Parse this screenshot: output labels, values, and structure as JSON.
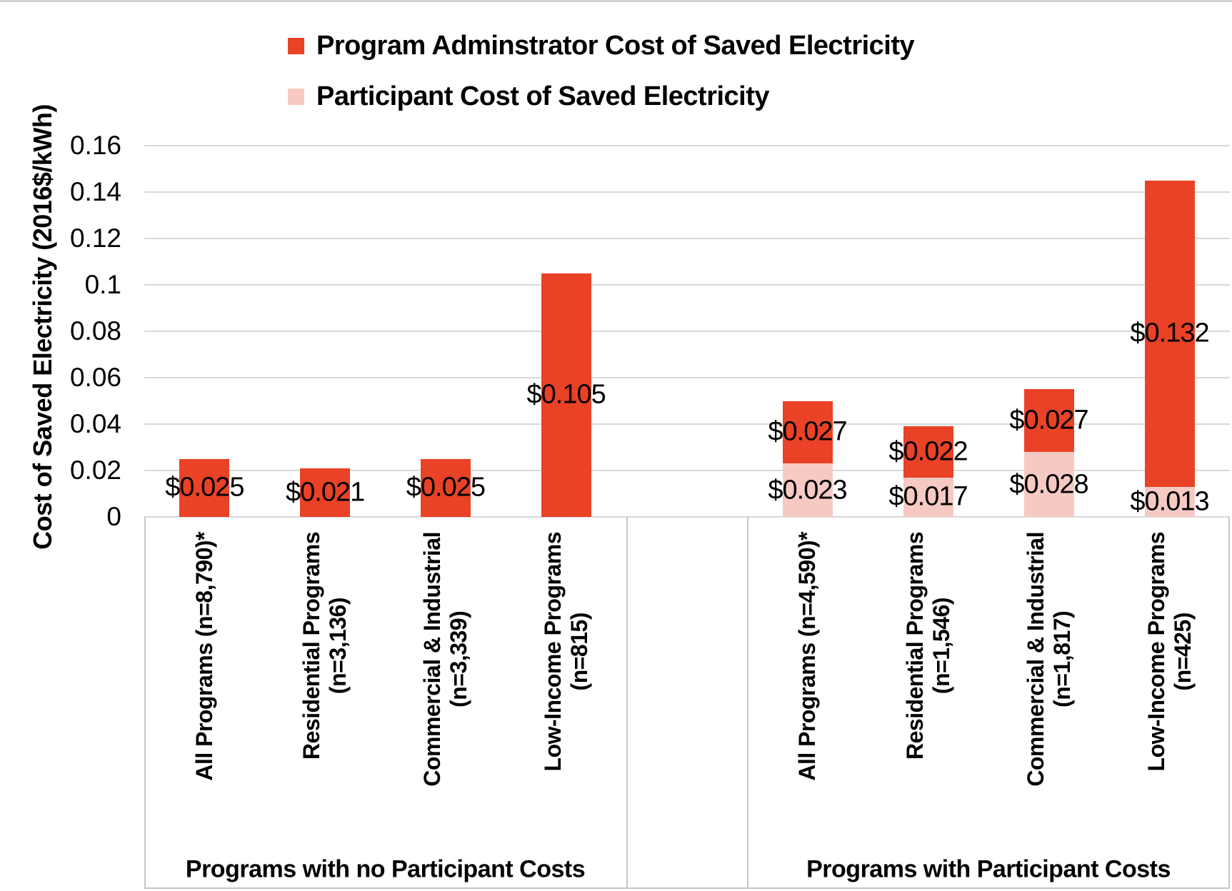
{
  "page": {
    "background": "#ffffff",
    "top_border_color": "#d4d2d2"
  },
  "legend": {
    "items": [
      {
        "name": "program-administrator-cost",
        "label": "Program Adminstrator Cost of Saved Electricity",
        "color": "#e94226"
      },
      {
        "name": "participant-cost",
        "label": "Participant Cost of Saved Electricity",
        "color": "#f6cac3"
      }
    ]
  },
  "chart_data": {
    "type": "bar",
    "stacked": true,
    "title": "",
    "xlabel": "",
    "ylabel": "Cost of Saved Electricity (2016$/kWh)",
    "ylim": [
      0,
      0.16
    ],
    "ytick_step": 0.02,
    "yticks": [
      {
        "value": 0.16,
        "label": "0.16"
      },
      {
        "value": 0.14,
        "label": "0.14"
      },
      {
        "value": 0.12,
        "label": "0.12"
      },
      {
        "value": 0.1,
        "label": "0.1"
      },
      {
        "value": 0.08,
        "label": "0.08"
      },
      {
        "value": 0.06,
        "label": "0.06"
      },
      {
        "value": 0.04,
        "label": "0.04"
      },
      {
        "value": 0.02,
        "label": "0.02"
      },
      {
        "value": 0,
        "label": "0"
      }
    ],
    "grid": true,
    "legend_position": "top",
    "series_names": [
      "Participant Cost of Saved Electricity",
      "Program Adminstrator Cost of Saved Electricity"
    ],
    "colors": {
      "pa": "#e94226",
      "participant": "#f6cac3",
      "gridline": "#d9d9d9",
      "box_border": "#c6c6c6",
      "label_text": "#000000"
    },
    "groups": [
      {
        "label": "Programs with no Participant Costs",
        "categories": [
          {
            "label_lines": [
              "All Programs (n=8,790)*"
            ],
            "participant": 0,
            "participant_label": "",
            "pa": 0.025,
            "pa_label": "$0.025"
          },
          {
            "label_lines": [
              "Residential Programs",
              "(n=3,136)"
            ],
            "participant": 0,
            "participant_label": "",
            "pa": 0.021,
            "pa_label": "$0.021"
          },
          {
            "label_lines": [
              "Commercial & Industrial",
              "(n=3,339)"
            ],
            "participant": 0,
            "participant_label": "",
            "pa": 0.025,
            "pa_label": "$0.025"
          },
          {
            "label_lines": [
              "Low-Income Programs",
              "(n=815)"
            ],
            "participant": 0,
            "participant_label": "",
            "pa": 0.105,
            "pa_label": "$0.105"
          }
        ]
      },
      {
        "label": "Programs with Participant Costs",
        "categories": [
          {
            "label_lines": [
              "All Programs (n=4,590)*"
            ],
            "participant": 0.023,
            "participant_label": "$0.023",
            "pa": 0.027,
            "pa_label": "$0.027"
          },
          {
            "label_lines": [
              "Residential Programs",
              "(n=1,546)"
            ],
            "participant": 0.017,
            "participant_label": "$0.017",
            "pa": 0.022,
            "pa_label": "$0.022"
          },
          {
            "label_lines": [
              "Commercial & Industrial",
              "(n=1,817)"
            ],
            "participant": 0.028,
            "participant_label": "$0.028",
            "pa": 0.027,
            "pa_label": "$0.027"
          },
          {
            "label_lines": [
              "Low-Income Programs",
              "(n=425)"
            ],
            "participant": 0.013,
            "participant_label": "$0.013",
            "pa": 0.132,
            "pa_label": "$0.132"
          }
        ]
      }
    ]
  }
}
